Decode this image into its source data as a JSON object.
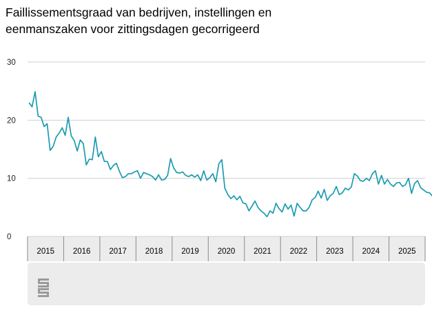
{
  "title_lines": [
    "Faillissementsgraad van bedrijven, instellingen en",
    "eenmanszaken voor zittingsdagen gecorrigeerd"
  ],
  "colors": {
    "line": "#1a9bb0",
    "grid": "#cfcfcf",
    "axis_band": "#ececec",
    "frame": "#dcdcdc",
    "logo": "#9a9a9a"
  },
  "logo_icon": "cbs-logo-icon",
  "chart_data": {
    "type": "line",
    "title": "Faillissementsgraad van bedrijven, instellingen en eenmanszaken voor zittingsdagen gecorrigeerd",
    "xlabel": "",
    "ylabel": "",
    "ylim": [
      0,
      30
    ],
    "yticks": [
      0,
      10,
      20,
      30
    ],
    "grid": true,
    "x_start": "2015-01",
    "frequency": "monthly",
    "x_tick_labels": [
      "2015",
      "2016",
      "2017",
      "2018",
      "2019",
      "2020",
      "2021",
      "2022",
      "2023",
      "2024",
      "2025"
    ],
    "values": [
      23.0,
      22.3,
      24.9,
      20.7,
      20.5,
      18.9,
      19.4,
      14.8,
      15.5,
      17.1,
      17.8,
      18.7,
      17.4,
      20.5,
      17.3,
      16.5,
      14.7,
      16.6,
      16.0,
      12.3,
      13.3,
      13.2,
      17.1,
      13.7,
      14.6,
      12.9,
      12.9,
      11.5,
      12.2,
      12.6,
      11.2,
      10.1,
      10.3,
      10.8,
      10.8,
      11.1,
      11.3,
      10.0,
      11.0,
      10.8,
      10.6,
      10.3,
      9.7,
      10.6,
      9.7,
      9.8,
      10.5,
      13.4,
      11.8,
      11.0,
      10.9,
      11.1,
      10.5,
      10.3,
      10.6,
      10.2,
      10.6,
      9.6,
      11.3,
      9.7,
      10.1,
      10.8,
      9.4,
      12.5,
      13.2,
      8.3,
      7.2,
      6.5,
      7.0,
      6.3,
      6.9,
      5.8,
      5.6,
      4.4,
      5.2,
      6.1,
      5.0,
      4.4,
      4.0,
      3.4,
      4.4,
      4.0,
      5.7,
      4.8,
      4.2,
      5.6,
      4.7,
      5.4,
      3.5,
      5.7,
      5.0,
      4.4,
      4.4,
      5.0,
      6.3,
      6.7,
      7.8,
      6.6,
      8.1,
      6.2,
      7.0,
      7.4,
      8.6,
      7.2,
      7.5,
      8.3,
      8.0,
      8.5,
      10.8,
      10.4,
      9.6,
      9.5,
      10.0,
      9.6,
      10.8,
      11.3,
      9.0,
      10.5,
      9.0,
      9.8,
      9.0,
      8.6,
      9.2,
      9.3,
      8.6,
      8.9,
      10.0,
      7.4,
      9.1,
      9.6,
      8.4,
      8.0,
      7.6,
      7.5,
      6.9,
      8.4
    ]
  }
}
